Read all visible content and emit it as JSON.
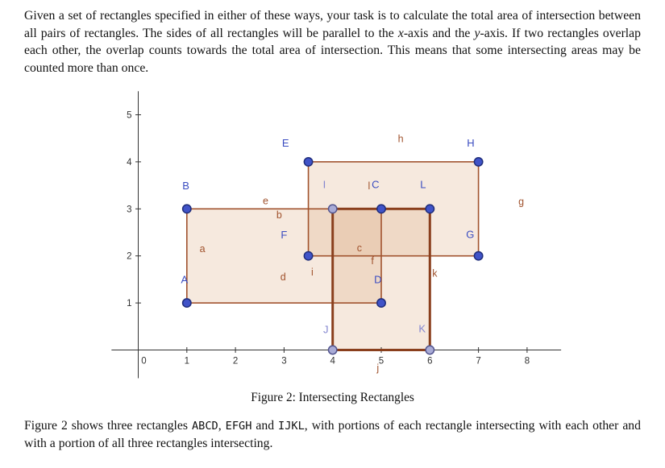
{
  "page": {
    "paragraph1_parts": [
      {
        "text": "Given a set of rectangles specified in either of these ways, your task is to calculate the total area of intersection between all pairs of rectangles. The sides of all rectangles will be parallel to the "
      },
      {
        "text": "x",
        "italic": true
      },
      {
        "text": "-axis and the "
      },
      {
        "text": "y",
        "italic": true
      },
      {
        "text": "-axis. If two rectangles overlap each other, the overlap counts towards the total area of intersection. This means that some intersecting areas may be counted more than once."
      }
    ],
    "caption": "Figure 2: Intersecting Rectangles",
    "paragraph2_parts": [
      {
        "text": "Figure 2 shows three rectangles "
      },
      {
        "text": "ABCD",
        "mono": true
      },
      {
        "text": ", "
      },
      {
        "text": "EFGH",
        "mono": true
      },
      {
        "text": " and "
      },
      {
        "text": "IJKL",
        "mono": true
      },
      {
        "text": ", with portions of each rectangle intersecting with each other and with a portion of all three rectangles intersecting."
      }
    ]
  },
  "chart_data": {
    "type": "scatter",
    "title": "Figure 2: Intersecting Rectangles",
    "xlabel": "",
    "ylabel": "",
    "xlim": [
      -0.55,
      8.7
    ],
    "ylim": [
      -0.6,
      5.5
    ],
    "x_ticks": [
      1,
      2,
      3,
      4,
      5,
      6,
      7,
      8
    ],
    "y_ticks": [
      1,
      2,
      3,
      4,
      5
    ],
    "origin_label": "0",
    "grid": false,
    "legend": false,
    "rectangles": [
      {
        "name": "ABCD",
        "x1": 1,
        "y1": 1,
        "x2": 5,
        "y2": 3,
        "stroke": "#a0522d",
        "stroke_width": 1.6
      },
      {
        "name": "EFGH",
        "x1": 3.5,
        "y1": 2,
        "x2": 7,
        "y2": 4,
        "stroke": "#a0522d",
        "stroke_width": 1.6
      },
      {
        "name": "IJKL",
        "x1": 4,
        "y1": 0,
        "x2": 6,
        "y2": 3,
        "stroke": "#8a3f1d",
        "stroke_width": 3
      }
    ],
    "points": [
      {
        "name": "A",
        "x": 1,
        "y": 1,
        "free": false,
        "lx": 0.95,
        "ly": 1.42
      },
      {
        "name": "B",
        "x": 1,
        "y": 3,
        "free": false,
        "lx": 0.98,
        "ly": 3.42
      },
      {
        "name": "C",
        "x": 5,
        "y": 3,
        "free": false,
        "lx": 4.88,
        "ly": 3.44
      },
      {
        "name": "D",
        "x": 5,
        "y": 1,
        "free": false,
        "lx": 4.93,
        "ly": 1.42
      },
      {
        "name": "E",
        "x": 3.5,
        "y": 4,
        "free": false,
        "lx": 3.03,
        "ly": 4.32
      },
      {
        "name": "F",
        "x": 3.5,
        "y": 2,
        "free": false,
        "lx": 3.0,
        "ly": 2.37
      },
      {
        "name": "G",
        "x": 7,
        "y": 2,
        "free": false,
        "lx": 6.83,
        "ly": 2.38
      },
      {
        "name": "H",
        "x": 7,
        "y": 4,
        "free": false,
        "lx": 6.84,
        "ly": 4.32
      },
      {
        "name": "I",
        "x": 4,
        "y": 3,
        "free": true,
        "lx": 3.83,
        "ly": 3.44
      },
      {
        "name": "J",
        "x": 4,
        "y": 0,
        "free": true,
        "lx": 3.86,
        "ly": 0.36
      },
      {
        "name": "K",
        "x": 6,
        "y": 0,
        "free": true,
        "lx": 5.84,
        "ly": 0.38
      },
      {
        "name": "L",
        "x": 6,
        "y": 3,
        "free": false,
        "lx": 5.86,
        "ly": 3.44
      }
    ],
    "side_labels": [
      {
        "text": "a",
        "x": 1.32,
        "y": 2.08
      },
      {
        "text": "b",
        "x": 2.9,
        "y": 2.8
      },
      {
        "text": "c",
        "x": 4.55,
        "y": 2.1
      },
      {
        "text": "d",
        "x": 2.98,
        "y": 1.48
      },
      {
        "text": "e",
        "x": 2.62,
        "y": 3.1
      },
      {
        "text": "f",
        "x": 4.82,
        "y": 1.82
      },
      {
        "text": "g",
        "x": 7.88,
        "y": 3.08
      },
      {
        "text": "h",
        "x": 5.4,
        "y": 4.42
      },
      {
        "text": "i",
        "x": 3.58,
        "y": 1.58
      },
      {
        "text": "j",
        "x": 4.93,
        "y": -0.45
      },
      {
        "text": "k",
        "x": 6.1,
        "y": 1.56
      },
      {
        "text": "l",
        "x": 4.75,
        "y": 3.42
      }
    ],
    "colors": {
      "axis": "#333333",
      "tick_label": "#333333",
      "rect_fill": "#e0b08a",
      "rect_fill_opacity": 0.28,
      "point_fill": "#4053c8",
      "point_stroke": "#1f2d7a",
      "point_label": "#3a4cc0",
      "free_point_fill": "#a9abd6",
      "free_point_stroke": "#53558f",
      "free_point_label": "#8285cf",
      "side_label": "#a0522d"
    }
  }
}
